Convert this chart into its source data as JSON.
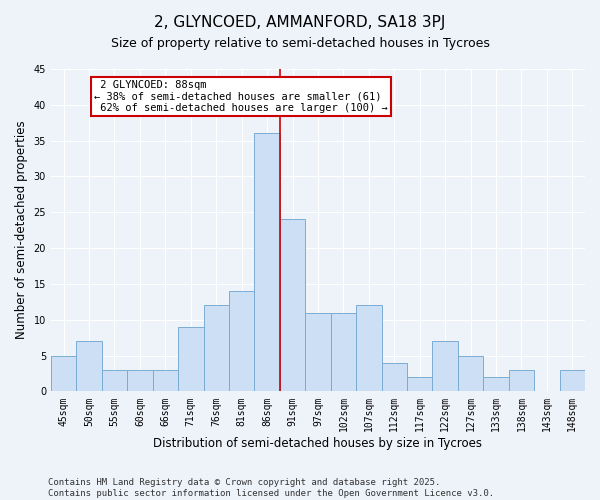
{
  "title": "2, GLYNCOED, AMMANFORD, SA18 3PJ",
  "subtitle": "Size of property relative to semi-detached houses in Tycroes",
  "xlabel": "Distribution of semi-detached houses by size in Tycroes",
  "ylabel": "Number of semi-detached properties",
  "categories": [
    "45sqm",
    "50sqm",
    "55sqm",
    "60sqm",
    "66sqm",
    "71sqm",
    "76sqm",
    "81sqm",
    "86sqm",
    "91sqm",
    "97sqm",
    "102sqm",
    "107sqm",
    "112sqm",
    "117sqm",
    "122sqm",
    "127sqm",
    "133sqm",
    "138sqm",
    "143sqm",
    "148sqm"
  ],
  "values": [
    5,
    7,
    3,
    3,
    3,
    9,
    12,
    14,
    36,
    24,
    11,
    11,
    12,
    4,
    2,
    7,
    5,
    2,
    3,
    0,
    3
  ],
  "bar_color": "#ccdff5",
  "bar_edge_color": "#7aadd4",
  "property_line_index": 8,
  "property_label": "2 GLYNCOED: 88sqm",
  "smaller_pct": "38%",
  "smaller_count": 61,
  "larger_pct": "62%",
  "larger_count": 100,
  "annotation_box_color": "#cc0000",
  "ylim": [
    0,
    45
  ],
  "yticks": [
    0,
    5,
    10,
    15,
    20,
    25,
    30,
    35,
    40,
    45
  ],
  "background_color": "#eef2f9",
  "grid_color": "#ffffff",
  "footer_line1": "Contains HM Land Registry data © Crown copyright and database right 2025.",
  "footer_line2": "Contains public sector information licensed under the Open Government Licence v3.0.",
  "title_fontsize": 11,
  "subtitle_fontsize": 9,
  "axis_label_fontsize": 8.5,
  "tick_fontsize": 7,
  "footer_fontsize": 6.5,
  "annot_fontsize": 7.5
}
